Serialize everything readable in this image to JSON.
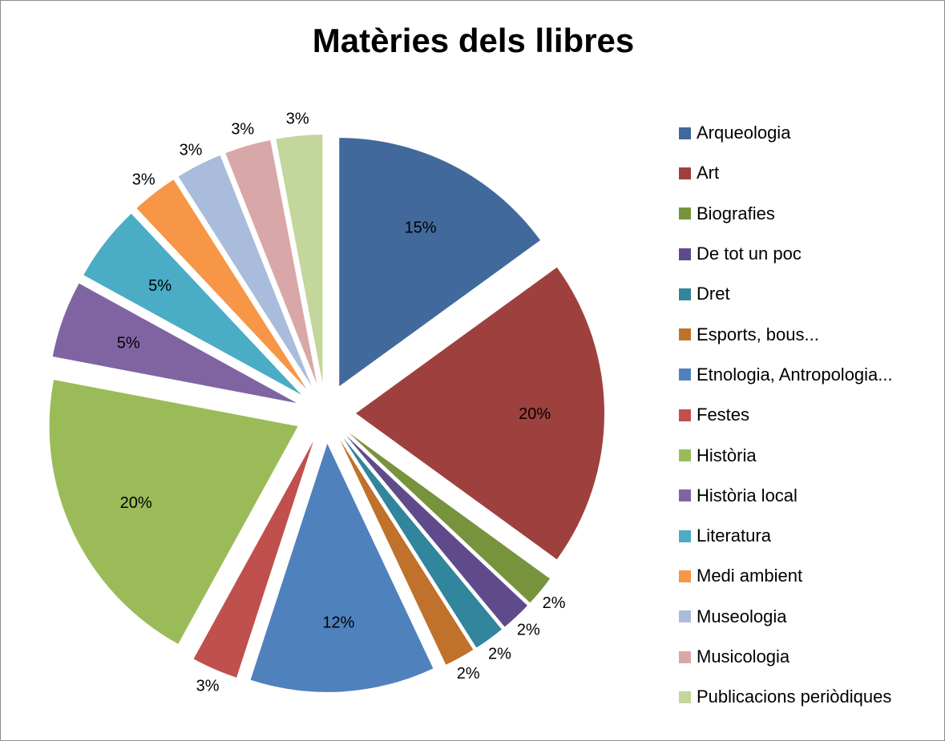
{
  "chart_data": {
    "type": "pie",
    "title": "Matèries dels llibres",
    "legend_position": "right",
    "categories": [
      "Arqueologia",
      "Art",
      "Biografies",
      "De tot un poc",
      "Dret",
      "Esports, bous...",
      "Etnologia, Antropologia...",
      "Festes",
      "Història",
      "Història local",
      "Literatura",
      "Medi ambient",
      "Museologia",
      "Musicologia",
      "Publicacions periòdiques"
    ],
    "values": [
      15,
      20,
      2,
      2,
      2,
      2,
      12,
      3,
      20,
      5,
      5,
      3,
      3,
      3,
      3
    ],
    "labels": [
      "15%",
      "20%",
      "2%",
      "2%",
      "2%",
      "2%",
      "12%",
      "3%",
      "20%",
      "5%",
      "5%",
      "3%",
      "3%",
      "3%",
      "3%"
    ],
    "colors": [
      "#41699C",
      "#9E413E",
      "#77933C",
      "#5F4B8B",
      "#31859C",
      "#C0712B",
      "#4F81BD",
      "#C0504D",
      "#9BBB59",
      "#8064A2",
      "#4BACC6",
      "#F79646",
      "#A9BCDB",
      "#D9A7A7",
      "#C3D69B"
    ]
  }
}
